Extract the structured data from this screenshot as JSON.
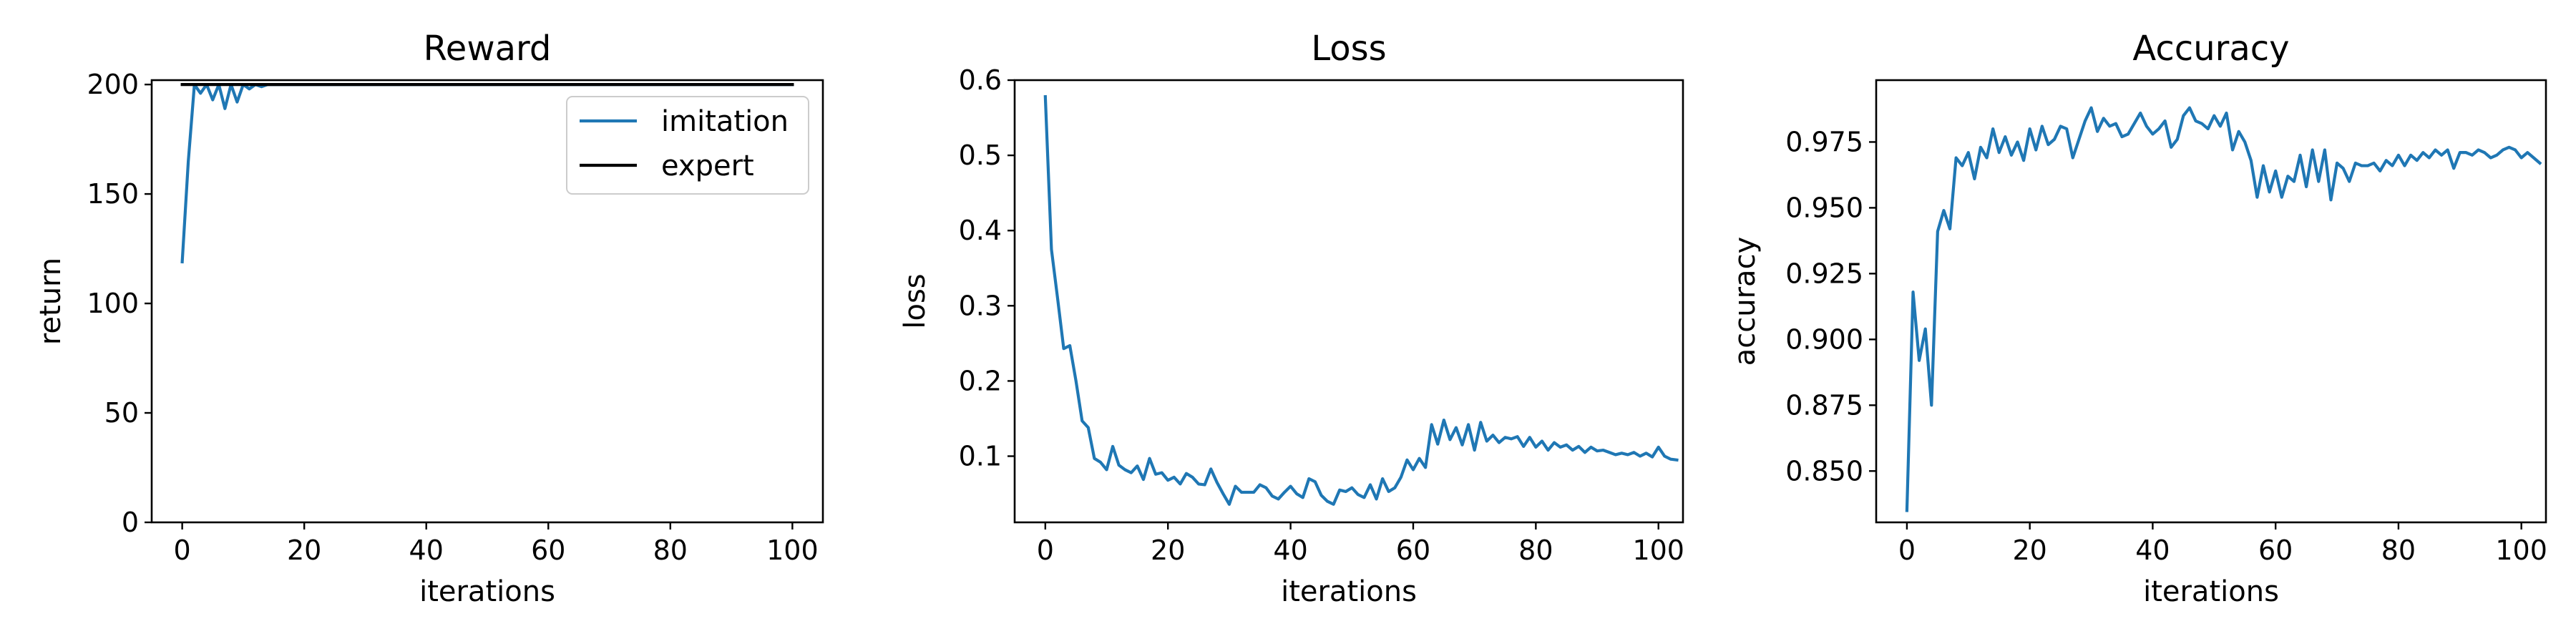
{
  "chart_data": [
    {
      "type": "line",
      "title": "Reward",
      "xlabel": "iterations",
      "ylabel": "return",
      "xlim": [
        -5,
        105
      ],
      "ylim": [
        0,
        202
      ],
      "xticks": [
        0,
        20,
        40,
        60,
        80,
        100
      ],
      "xtick_labels": [
        "0",
        "20",
        "40",
        "60",
        "80",
        "100"
      ],
      "yticks": [
        0,
        50,
        100,
        150,
        200
      ],
      "ytick_labels": [
        "0",
        "50",
        "100",
        "150",
        "200"
      ],
      "grid": false,
      "legend": {
        "position": "upper right"
      },
      "series": [
        {
          "name": "imitation",
          "color": "#1f77b4",
          "x": [
            0,
            1,
            2,
            3,
            4,
            5,
            6,
            7,
            8,
            9,
            10,
            11,
            12,
            13,
            14,
            15,
            16,
            17,
            18,
            19,
            20,
            30,
            40,
            50,
            60,
            70,
            80,
            90,
            100
          ],
          "y": [
            119,
            165,
            200,
            196,
            200,
            193,
            200,
            189,
            200,
            192,
            200,
            198,
            200,
            199,
            200,
            200,
            200,
            200,
            200,
            200,
            200,
            200,
            200,
            200,
            200,
            200,
            200,
            200,
            200
          ]
        },
        {
          "name": "expert",
          "color": "#000000",
          "x": [
            0,
            100
          ],
          "y": [
            200,
            200
          ]
        }
      ]
    },
    {
      "type": "line",
      "title": "Loss",
      "xlabel": "iterations",
      "ylabel": "loss",
      "xlim": [
        -5,
        104
      ],
      "ylim": [
        0.012,
        0.6
      ],
      "xticks": [
        0,
        20,
        40,
        60,
        80,
        100
      ],
      "xtick_labels": [
        "0",
        "20",
        "40",
        "60",
        "80",
        "100"
      ],
      "yticks": [
        0.1,
        0.2,
        0.3,
        0.4,
        0.5,
        0.6
      ],
      "ytick_labels": [
        "0.1",
        "0.2",
        "0.3",
        "0.4",
        "0.5",
        "0.6"
      ],
      "grid": false,
      "series": [
        {
          "color": "#1f77b4",
          "x_start": 0,
          "y": [
            0.578,
            0.375,
            0.31,
            0.243,
            0.247,
            0.2,
            0.147,
            0.138,
            0.097,
            0.092,
            0.082,
            0.113,
            0.088,
            0.082,
            0.078,
            0.087,
            0.069,
            0.097,
            0.076,
            0.078,
            0.068,
            0.072,
            0.063,
            0.077,
            0.072,
            0.063,
            0.062,
            0.083,
            0.065,
            0.05,
            0.036,
            0.06,
            0.052,
            0.052,
            0.052,
            0.062,
            0.058,
            0.047,
            0.043,
            0.052,
            0.06,
            0.05,
            0.045,
            0.07,
            0.066,
            0.048,
            0.04,
            0.036,
            0.055,
            0.053,
            0.058,
            0.049,
            0.045,
            0.062,
            0.043,
            0.07,
            0.053,
            0.058,
            0.072,
            0.095,
            0.082,
            0.097,
            0.085,
            0.142,
            0.116,
            0.148,
            0.122,
            0.138,
            0.115,
            0.142,
            0.108,
            0.145,
            0.12,
            0.128,
            0.118,
            0.125,
            0.123,
            0.126,
            0.113,
            0.125,
            0.112,
            0.12,
            0.108,
            0.118,
            0.112,
            0.115,
            0.108,
            0.113,
            0.105,
            0.112,
            0.107,
            0.108,
            0.105,
            0.102,
            0.104,
            0.102,
            0.105,
            0.1,
            0.104,
            0.099,
            0.112,
            0.1,
            0.096,
            0.095
          ]
        }
      ]
    },
    {
      "type": "line",
      "title": "Accuracy",
      "xlabel": "iterations",
      "ylabel": "accuracy",
      "xlim": [
        -5,
        104
      ],
      "ylim": [
        0.8305,
        0.9985
      ],
      "xticks": [
        0,
        20,
        40,
        60,
        80,
        100
      ],
      "xtick_labels": [
        "0",
        "20",
        "40",
        "60",
        "80",
        "100"
      ],
      "yticks": [
        0.85,
        0.875,
        0.9,
        0.925,
        0.95,
        0.975
      ],
      "ytick_labels": [
        "0.850",
        "0.875",
        "0.900",
        "0.925",
        "0.950",
        "0.975"
      ],
      "grid": false,
      "series": [
        {
          "color": "#1f77b4",
          "x_start": 0,
          "y": [
            0.835,
            0.918,
            0.892,
            0.904,
            0.875,
            0.941,
            0.949,
            0.942,
            0.969,
            0.966,
            0.971,
            0.961,
            0.973,
            0.969,
            0.98,
            0.971,
            0.977,
            0.97,
            0.975,
            0.968,
            0.98,
            0.972,
            0.981,
            0.974,
            0.976,
            0.981,
            0.98,
            0.969,
            0.976,
            0.983,
            0.988,
            0.979,
            0.984,
            0.981,
            0.982,
            0.977,
            0.978,
            0.982,
            0.986,
            0.981,
            0.978,
            0.98,
            0.983,
            0.973,
            0.976,
            0.985,
            0.988,
            0.983,
            0.982,
            0.98,
            0.985,
            0.981,
            0.986,
            0.972,
            0.979,
            0.975,
            0.968,
            0.954,
            0.966,
            0.956,
            0.964,
            0.954,
            0.962,
            0.96,
            0.97,
            0.958,
            0.972,
            0.96,
            0.972,
            0.953,
            0.967,
            0.965,
            0.96,
            0.967,
            0.966,
            0.966,
            0.967,
            0.964,
            0.968,
            0.966,
            0.97,
            0.966,
            0.97,
            0.968,
            0.971,
            0.969,
            0.972,
            0.97,
            0.972,
            0.965,
            0.971,
            0.971,
            0.97,
            0.972,
            0.971,
            0.969,
            0.97,
            0.972,
            0.973,
            0.972,
            0.969,
            0.971,
            0.969,
            0.967
          ]
        }
      ]
    }
  ]
}
